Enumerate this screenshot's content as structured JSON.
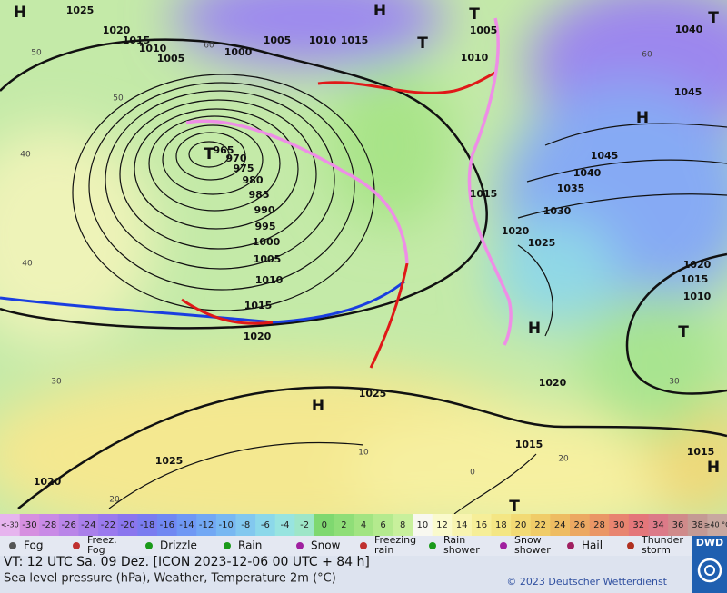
{
  "map": {
    "pressure_centers": [
      "H",
      "H",
      "T",
      "T",
      "T",
      "H",
      "T",
      "H",
      "T",
      "H",
      "H",
      "T"
    ],
    "isobar_labels": [
      "1025",
      "1020",
      "1015",
      "1010",
      "1005",
      "1000",
      "1005",
      "1010",
      "1015",
      "1005",
      "1010",
      "1040",
      "1045",
      "1045",
      "1040",
      "1035",
      "1030",
      "1015",
      "1020",
      "1025",
      "965",
      "970",
      "975",
      "980",
      "985",
      "990",
      "995",
      "1000",
      "1005",
      "1010",
      "1015",
      "1020",
      "1020",
      "1015",
      "1010",
      "1020",
      "1025",
      "1015",
      "1015",
      "1025",
      "1020"
    ],
    "temperature_labels": [
      "60",
      "50",
      "40",
      "30",
      "20",
      "60",
      "50",
      "40",
      "30",
      "20",
      "10",
      "0"
    ]
  },
  "temperature_scale": {
    "below": "<-30",
    "above": "≥40 °C",
    "below_color": "#e6b4ee",
    "above_color": "#c8a8a0",
    "steps": [
      -30,
      -28,
      -26,
      -24,
      -22,
      -20,
      -18,
      -16,
      -14,
      -12,
      -10,
      -8,
      -6,
      -4,
      -2,
      0,
      2,
      4,
      6,
      8,
      10,
      12,
      14,
      16,
      18,
      20,
      22,
      24,
      26,
      28,
      30,
      32,
      34,
      36,
      38
    ],
    "colors": [
      "#d68fe0",
      "#c98ae6",
      "#b985e8",
      "#a97fea",
      "#9a7aee",
      "#8a76ee",
      "#7a7cf0",
      "#7088f2",
      "#6f98f4",
      "#72a8f4",
      "#78b8f2",
      "#82c8ef",
      "#8cd8ea",
      "#98e4e0",
      "#9ee6c8",
      "#7fd870",
      "#8fde78",
      "#a2e482",
      "#b4ea8e",
      "#c8f09c",
      "#f8f8f0",
      "#fafacc",
      "#f8f4b0",
      "#f6ee98",
      "#f4e684",
      "#f2da74",
      "#f0cc68",
      "#eebc62",
      "#eca862",
      "#ea9666",
      "#e88470",
      "#e4767a",
      "#dc7a88",
      "#d08a8a",
      "#c49a94"
    ]
  },
  "weather_legend": [
    [
      "Fog"
    ],
    [
      "Freez.",
      "Fog"
    ],
    [
      "Drizzle"
    ],
    [
      "Rain"
    ],
    [
      "Snow"
    ],
    [
      "Freezing",
      "rain"
    ],
    [
      "Rain",
      "shower"
    ],
    [
      "Snow",
      "shower"
    ],
    [
      "Hail"
    ],
    [
      "Thunder",
      "storm"
    ]
  ],
  "footer": {
    "valid_time": "VT: 12 UTC Sa.  09 Dez. [ICON 2023-12-06  00 UTC + 84 h]",
    "description": "Sea level pressure (hPa), Weather, Temperature 2m (°C)",
    "copyright": "© 2023 Deutscher Wetterdienst",
    "logo": "DWD"
  }
}
